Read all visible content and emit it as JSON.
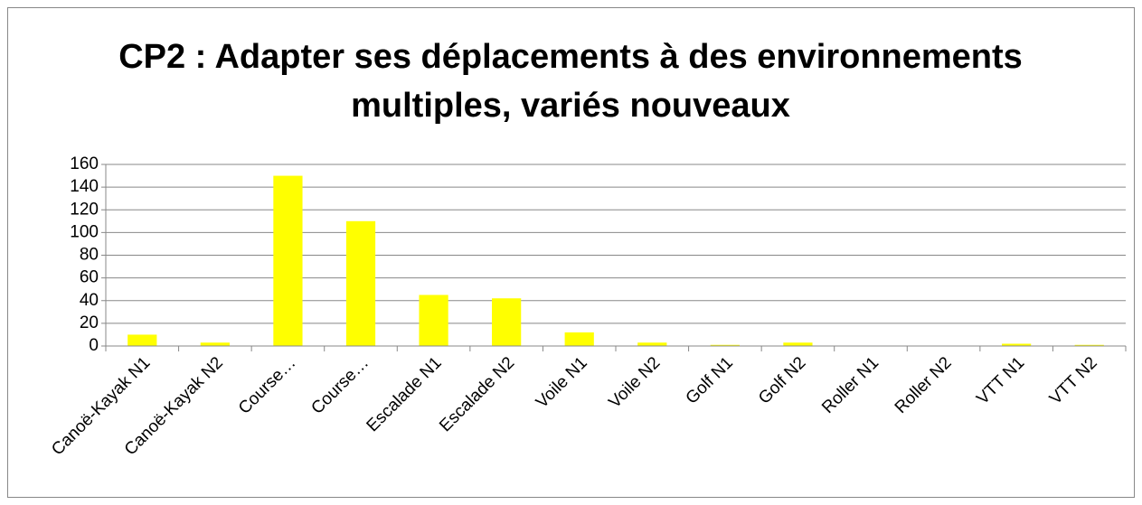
{
  "chart_data": {
    "type": "bar",
    "title": "CP2 : Adapter ses déplacements à des environnements multiples, variés nouveaux",
    "categories": [
      "Canoë-Kayak N1",
      "Canoë-Kayak N2",
      "Course…",
      "Course…",
      "Escalade N1",
      "Escalade N2",
      "Voile N1",
      "Voile N2",
      "Golf N1",
      "Golf N2",
      "Roller N1",
      "Roller N2",
      "VTT N1",
      "VTT N2"
    ],
    "values": [
      10,
      3,
      150,
      110,
      45,
      42,
      12,
      3,
      1,
      3,
      0,
      0,
      2,
      1
    ],
    "color": "#ffff00",
    "ylim": [
      0,
      160
    ],
    "yticks": [
      0,
      20,
      40,
      60,
      80,
      100,
      120,
      140,
      160
    ],
    "grid": true
  }
}
